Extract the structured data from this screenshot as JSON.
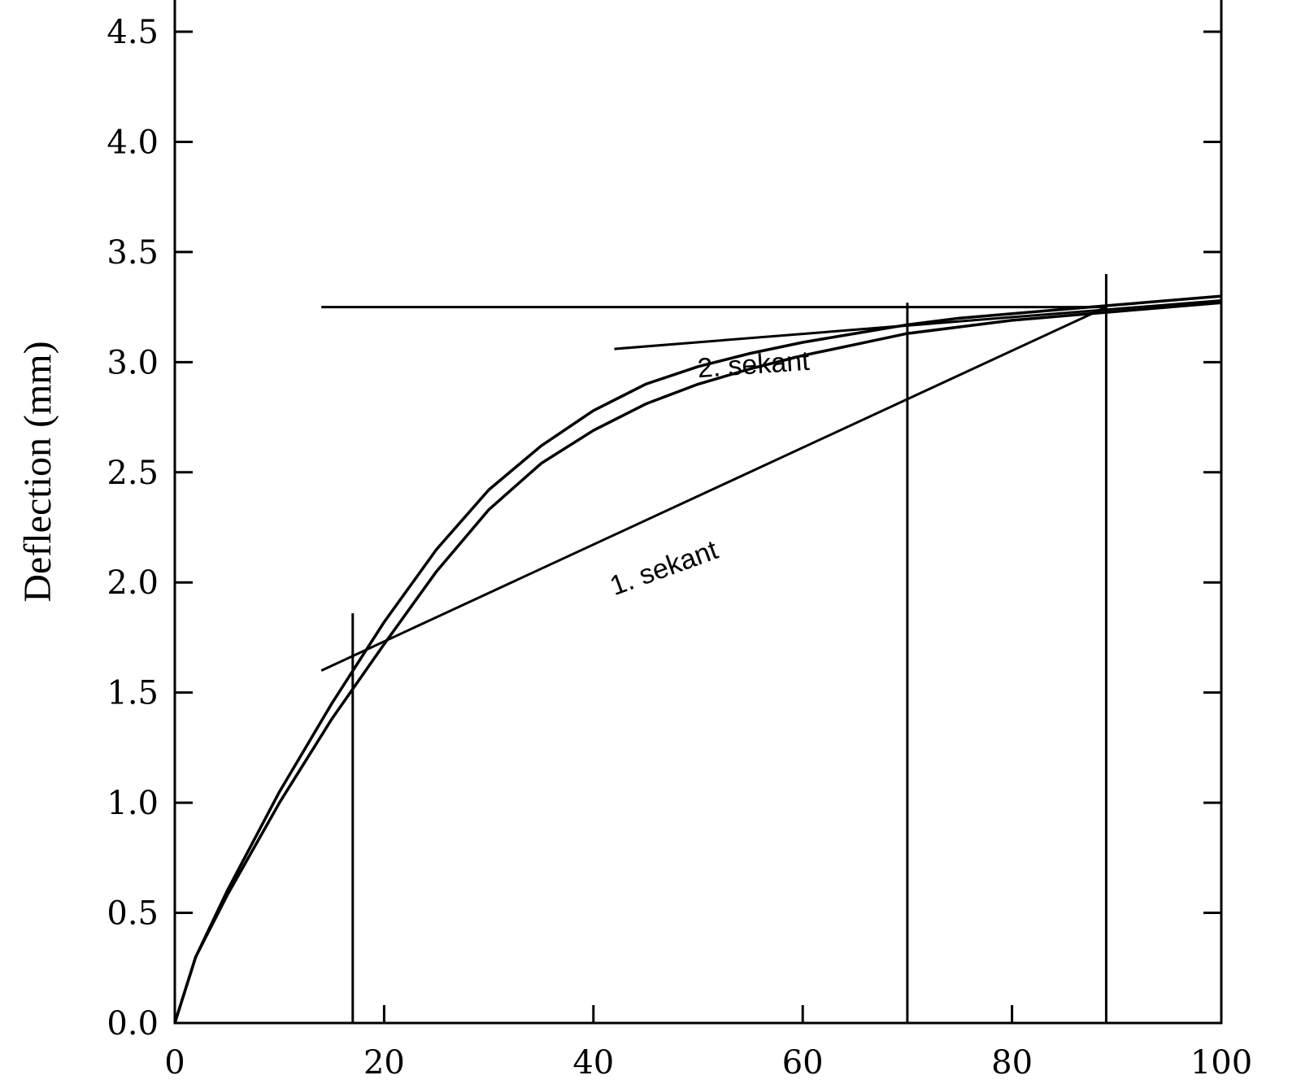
{
  "chart_data": {
    "type": "line",
    "title": "",
    "xlabel": "",
    "ylabel": "Deflection (mm)",
    "xlim": [
      0,
      100
    ],
    "ylim": [
      0,
      4.7
    ],
    "grid": false,
    "x_ticks": [
      {
        "value": 0,
        "label": "0"
      },
      {
        "value": 20,
        "label": "20"
      },
      {
        "value": 40,
        "label": "40"
      },
      {
        "value": 60,
        "label": "60"
      },
      {
        "value": 80,
        "label": "80"
      },
      {
        "value": 100,
        "label": "100"
      }
    ],
    "y_ticks": [
      {
        "value": 0.0,
        "label": "0.0"
      },
      {
        "value": 0.5,
        "label": "0.5"
      },
      {
        "value": 1.0,
        "label": "1.0"
      },
      {
        "value": 1.5,
        "label": "1.5"
      },
      {
        "value": 2.0,
        "label": "2.0"
      },
      {
        "value": 2.5,
        "label": "2.5"
      },
      {
        "value": 3.0,
        "label": "3.0"
      },
      {
        "value": 3.5,
        "label": "3.5"
      },
      {
        "value": 4.0,
        "label": "4.0"
      },
      {
        "value": 4.5,
        "label": "4.5"
      }
    ],
    "series": [
      {
        "x": [
          0,
          2,
          5,
          10,
          15,
          20,
          25,
          30,
          35,
          40,
          45,
          50,
          55,
          60,
          65,
          70,
          75,
          80,
          85,
          90,
          95,
          100
        ],
        "y": [
          0,
          0.3,
          0.6,
          1.05,
          1.45,
          1.82,
          2.15,
          2.42,
          2.62,
          2.78,
          2.9,
          2.98,
          3.04,
          3.09,
          3.13,
          3.17,
          3.2,
          3.22,
          3.24,
          3.26,
          3.28,
          3.3
        ]
      },
      {
        "x": [
          0,
          2,
          5,
          10,
          15,
          20,
          25,
          30,
          35,
          40,
          45,
          50,
          55,
          60,
          65,
          70,
          75,
          80,
          85,
          90,
          95,
          100
        ],
        "y": [
          0,
          0.3,
          0.58,
          1.0,
          1.38,
          1.72,
          2.05,
          2.33,
          2.54,
          2.69,
          2.81,
          2.9,
          2.97,
          3.03,
          3.08,
          3.13,
          3.16,
          3.19,
          3.21,
          3.23,
          3.25,
          3.27
        ]
      }
    ],
    "reference_lines": [
      {
        "x1": 14,
        "y1": 1.6,
        "x2": 89,
        "y2": 3.25
      },
      {
        "x1": 42,
        "y1": 3.06,
        "x2": 100,
        "y2": 3.28
      },
      {
        "x1": 14,
        "y1": 3.25,
        "x2": 89,
        "y2": 3.25
      },
      {
        "x1": 17,
        "y1": 0,
        "x2": 17,
        "y2": 1.86
      },
      {
        "x1": 70,
        "y1": 0,
        "x2": 70,
        "y2": 3.27
      },
      {
        "x1": 89,
        "y1": 0,
        "x2": 89,
        "y2": 3.4
      }
    ],
    "annotations": [
      {
        "text": "1. sekant",
        "x": 42,
        "y": 1.94,
        "angle": -20
      },
      {
        "text": "2. sekant",
        "x": 50,
        "y": 2.93,
        "angle": -4
      }
    ]
  }
}
